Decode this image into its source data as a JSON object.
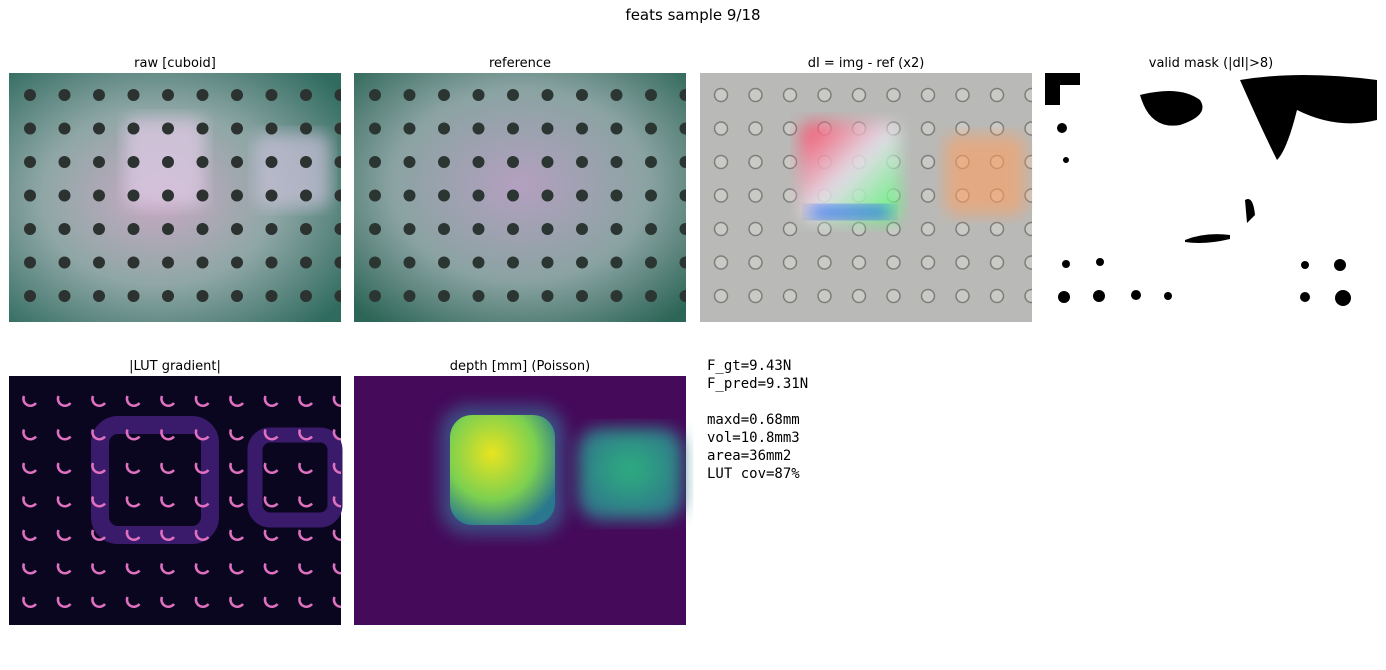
{
  "figure": {
    "title": "feats sample 9/18",
    "panels": [
      {
        "title": "raw  [cuboid]"
      },
      {
        "title": "reference"
      },
      {
        "title": "dI = img - ref (x2)"
      },
      {
        "title": "valid mask (|dI|>8)"
      },
      {
        "title": "|LUT gradient|"
      },
      {
        "title": "depth [mm] (Poisson)"
      }
    ],
    "forces": [
      "F_gt=9.43N",
      "F_pred=9.31N"
    ],
    "metrics": [
      "maxd=0.68mm",
      "vol=10.8mm3",
      "area=36mm2",
      "LUT cov=87%"
    ]
  }
}
